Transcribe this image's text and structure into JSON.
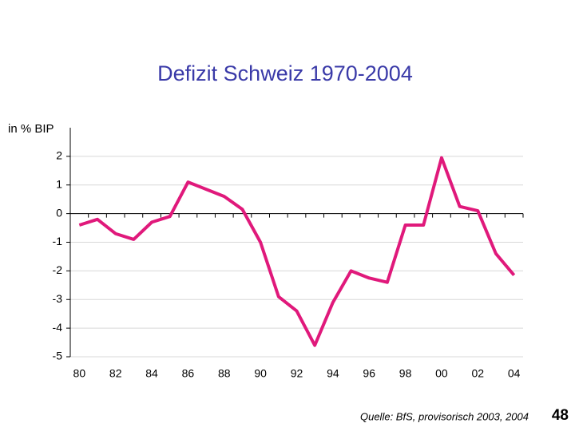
{
  "chart_data": {
    "type": "line",
    "title": "Defizit Schweiz 1970-2004",
    "y_label": "in % BIP",
    "source": "Quelle: BfS, provisorisch 2003, 2004",
    "page_number": "48",
    "categories": [
      "80",
      null,
      "82",
      null,
      "84",
      null,
      "86",
      null,
      "88",
      null,
      "90",
      null,
      "92",
      null,
      "94",
      null,
      "96",
      null,
      "98",
      null,
      "00",
      null,
      "02",
      null,
      "04"
    ],
    "series": [
      {
        "name": "Defizit",
        "color": "#e0197b",
        "values": [
          -0.4,
          -0.2,
          -0.7,
          -0.9,
          -0.3,
          -0.1,
          1.1,
          0.85,
          0.6,
          0.15,
          -1.0,
          -2.9,
          -3.4,
          -4.6,
          -3.1,
          -2.0,
          -2.25,
          -2.4,
          -0.4,
          -0.4,
          1.95,
          0.25,
          0.1,
          -1.4,
          -2.15
        ]
      }
    ],
    "ylim": [
      -5,
      3
    ],
    "yticks": [
      -5,
      -4,
      -3,
      -2,
      -1,
      0,
      1,
      2
    ],
    "grid": true
  }
}
